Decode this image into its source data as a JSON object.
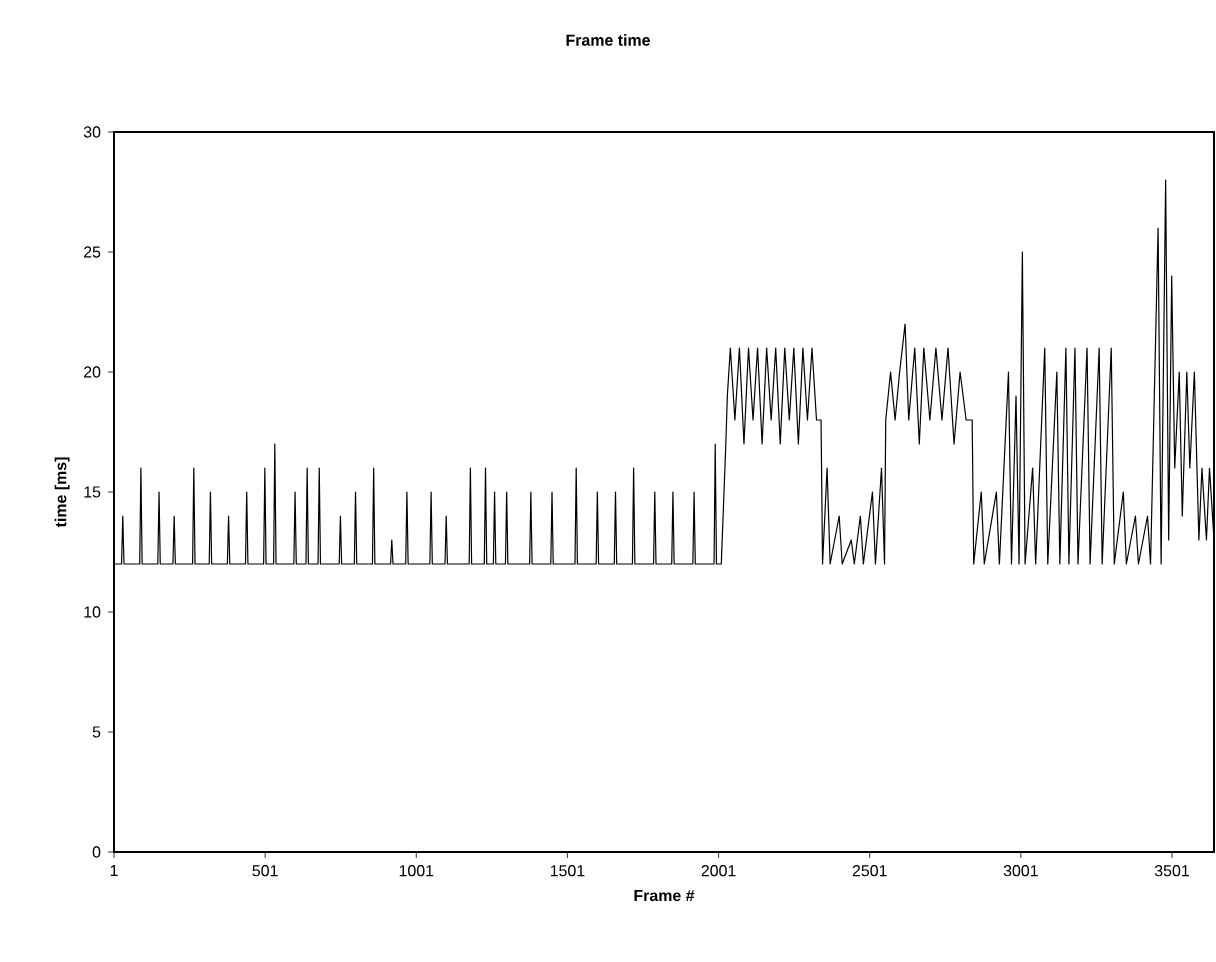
{
  "chart_data": {
    "type": "line",
    "title": "Frame time",
    "xlabel": "Frame #",
    "ylabel": "time [ms]",
    "xlim": [
      1,
      3640
    ],
    "xticks": [
      1,
      501,
      1001,
      1501,
      2001,
      2501,
      3001,
      3501
    ],
    "ylim": [
      0,
      30
    ],
    "yticks": [
      0,
      5,
      10,
      15,
      20,
      25,
      30
    ],
    "marker": "none",
    "line_style": "solid",
    "series": [
      {
        "color": "#000000",
        "x": [
          1,
          26,
          30,
          34,
          86,
          90,
          94,
          146,
          150,
          154,
          196,
          200,
          204,
          261,
          265,
          269,
          316,
          320,
          324,
          376,
          380,
          384,
          436,
          440,
          444,
          496,
          500,
          504,
          529,
          533,
          537,
          596,
          600,
          604,
          636,
          640,
          644,
          676,
          680,
          684,
          746,
          750,
          754,
          796,
          800,
          804,
          856,
          860,
          864,
          916,
          920,
          924,
          966,
          970,
          974,
          1046,
          1050,
          1054,
          1096,
          1100,
          1104,
          1176,
          1180,
          1184,
          1226,
          1230,
          1234,
          1256,
          1260,
          1264,
          1296,
          1300,
          1304,
          1376,
          1380,
          1384,
          1446,
          1450,
          1454,
          1526,
          1530,
          1534,
          1596,
          1600,
          1604,
          1656,
          1660,
          1664,
          1716,
          1720,
          1724,
          1786,
          1790,
          1794,
          1846,
          1850,
          1854,
          1916,
          1920,
          1924,
          1986,
          1990,
          1994,
          2010,
          2025,
          2030,
          2040,
          2055,
          2070,
          2085,
          2100,
          2115,
          2130,
          2145,
          2160,
          2175,
          2190,
          2205,
          2220,
          2235,
          2250,
          2265,
          2280,
          2295,
          2310,
          2325,
          2340,
          2345,
          2360,
          2370,
          2400,
          2410,
          2440,
          2450,
          2470,
          2480,
          2510,
          2520,
          2540,
          2550,
          2554,
          2570,
          2585,
          2600,
          2618,
          2630,
          2650,
          2665,
          2680,
          2700,
          2720,
          2740,
          2760,
          2780,
          2800,
          2820,
          2840,
          2845,
          2870,
          2880,
          2920,
          2930,
          2960,
          2970,
          2985,
          2995,
          3006,
          3015,
          3040,
          3050,
          3080,
          3090,
          3120,
          3130,
          3150,
          3160,
          3180,
          3190,
          3220,
          3230,
          3260,
          3270,
          3300,
          3310,
          3340,
          3350,
          3380,
          3390,
          3420,
          3430,
          3455,
          3465,
          3480,
          3490,
          3500,
          3510,
          3525,
          3535,
          3550,
          3560,
          3575,
          3590,
          3600,
          3615,
          3625,
          3640
        ],
        "values": [
          12,
          12,
          14,
          12,
          12,
          16,
          12,
          12,
          15,
          12,
          12,
          14,
          12,
          12,
          16,
          12,
          12,
          15,
          12,
          12,
          14,
          12,
          12,
          15,
          12,
          12,
          16,
          12,
          12,
          17,
          12,
          12,
          15,
          12,
          12,
          16,
          12,
          12,
          16,
          12,
          12,
          14,
          12,
          12,
          15,
          12,
          12,
          16,
          12,
          12,
          13,
          12,
          12,
          15,
          12,
          12,
          15,
          12,
          12,
          14,
          12,
          12,
          16,
          12,
          12,
          16,
          12,
          12,
          15,
          12,
          12,
          15,
          12,
          12,
          15,
          12,
          12,
          15,
          12,
          12,
          16,
          12,
          12,
          15,
          12,
          12,
          15,
          12,
          12,
          16,
          12,
          12,
          15,
          12,
          12,
          15,
          12,
          12,
          15,
          12,
          12,
          17,
          12,
          12,
          17,
          19,
          21,
          18,
          21,
          17,
          21,
          18,
          21,
          17,
          21,
          18,
          21,
          17,
          21,
          18,
          21,
          17,
          21,
          18,
          21,
          18,
          18,
          12,
          16,
          12,
          14,
          12,
          13,
          12,
          14,
          12,
          15,
          12,
          16,
          12,
          18,
          20,
          18,
          20,
          22,
          18,
          21,
          17,
          21,
          18,
          21,
          18,
          21,
          17,
          20,
          18,
          18,
          12,
          15,
          12,
          15,
          12,
          20,
          12,
          19,
          12,
          25,
          12,
          16,
          12,
          21,
          12,
          20,
          12,
          21,
          12,
          21,
          12,
          21,
          12,
          21,
          12,
          21,
          12,
          15,
          12,
          14,
          12,
          14,
          12,
          26,
          12,
          28,
          13,
          24,
          16,
          20,
          14,
          20,
          16,
          20,
          13,
          16,
          13,
          16,
          13
        ]
      }
    ]
  }
}
